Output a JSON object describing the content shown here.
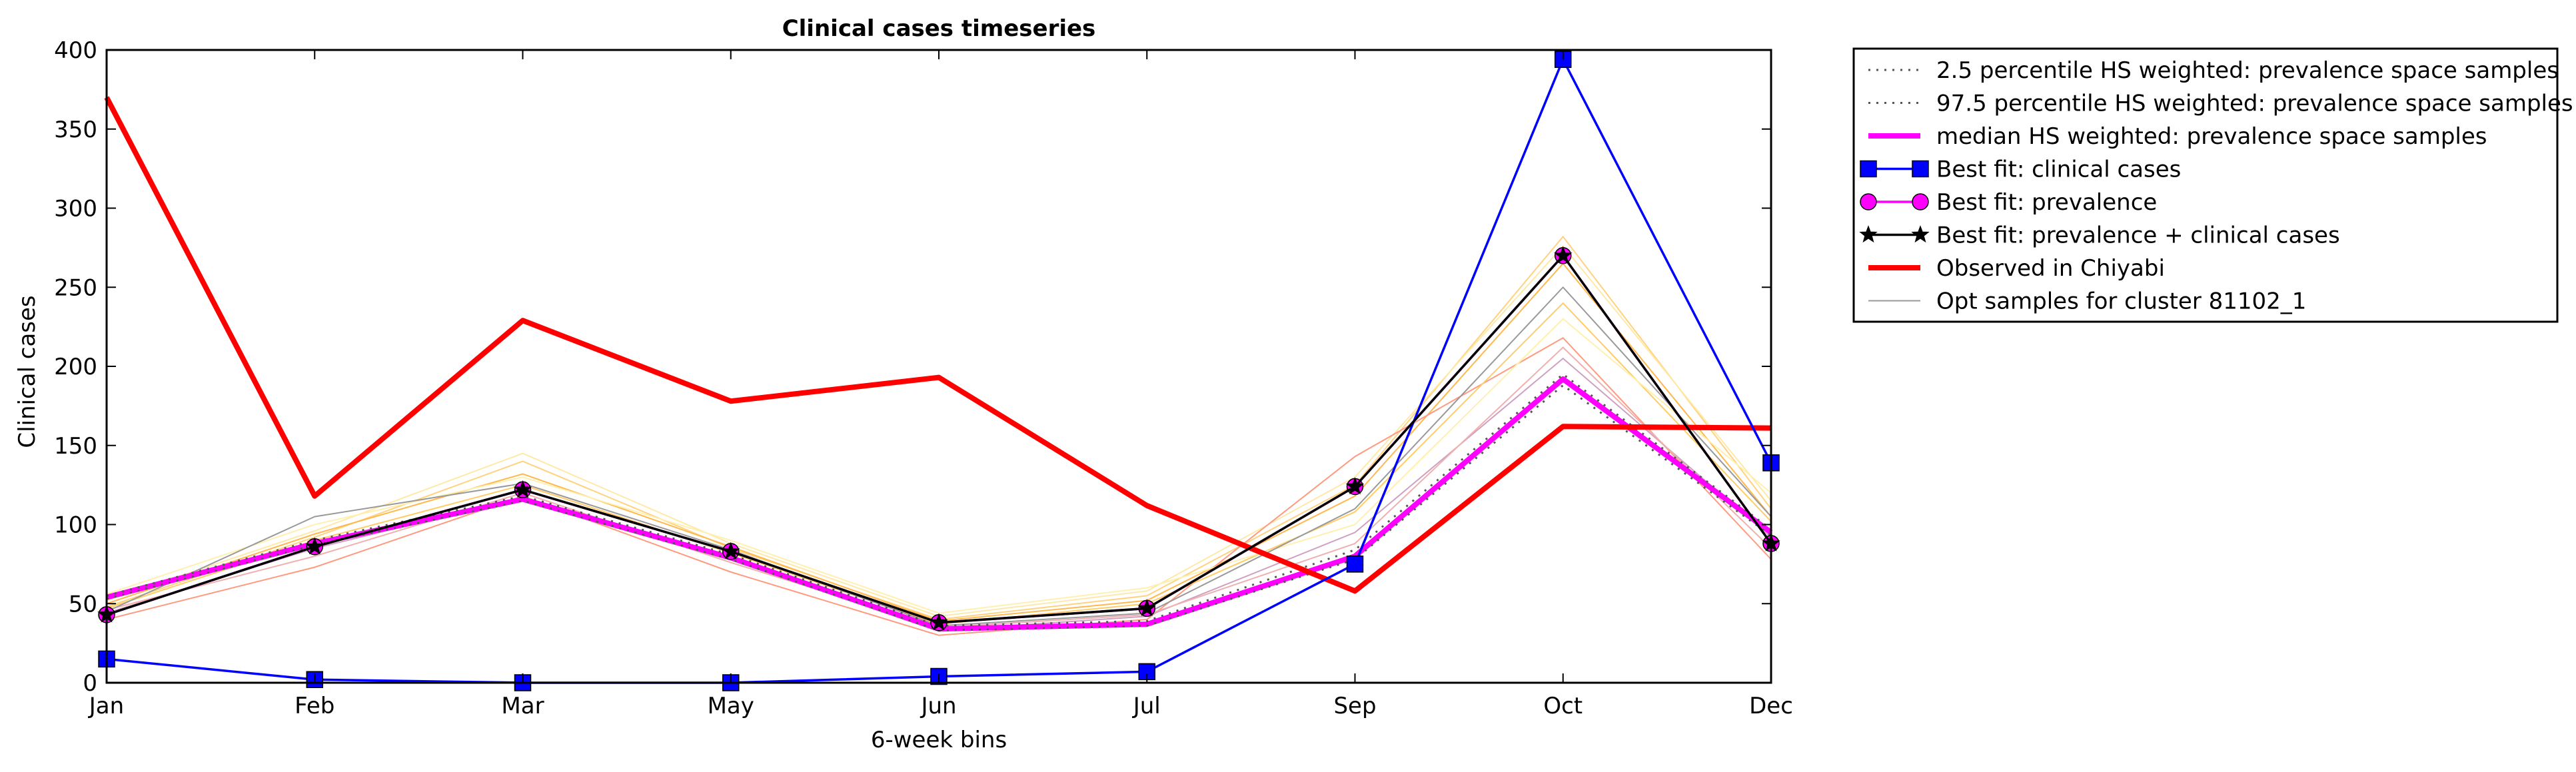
{
  "chart_data": {
    "type": "line",
    "title": "Clinical cases timeseries",
    "xlabel": "6-week bins",
    "ylabel": "Clinical cases",
    "categories": [
      "Jan",
      "Feb",
      "Mar",
      "May",
      "Jun",
      "Jul",
      "Sep",
      "Oct",
      "Dec"
    ],
    "ylim": [
      0,
      400
    ],
    "yticks": [
      0,
      50,
      100,
      150,
      200,
      250,
      300,
      350,
      400
    ],
    "grid": false,
    "legend_position": "outside-top-right",
    "series": [
      {
        "name": "2.5 percentile HS weighted: prevalence space samples",
        "color": "#555555",
        "style": "dotted",
        "values": [
          53,
          87,
          115,
          78,
          33,
          36,
          78,
          188,
          93
        ]
      },
      {
        "name": "97.5 percentile HS weighted: prevalence space samples",
        "color": "#555555",
        "style": "dotted",
        "values": [
          55,
          90,
          118,
          81,
          36,
          39,
          84,
          195,
          97
        ]
      },
      {
        "name": "median HS weighted: prevalence space samples",
        "color": "#ff00ff",
        "style": "thick",
        "values": [
          54,
          88,
          116,
          79,
          34,
          37,
          80,
          192,
          95
        ]
      },
      {
        "name": "Best fit: clinical cases",
        "color": "#0000ff",
        "marker": "square",
        "values": [
          15,
          2,
          0,
          0,
          4,
          7,
          75,
          394,
          139
        ]
      },
      {
        "name": "Best fit: prevalence",
        "color": "#ff00ff",
        "marker": "circle",
        "values": [
          43,
          86,
          122,
          83,
          38,
          47,
          124,
          270,
          88
        ]
      },
      {
        "name": "Best fit: prevalence + clinical cases",
        "color": "#000000",
        "marker": "star",
        "values": [
          43,
          86,
          122,
          83,
          38,
          47,
          124,
          270,
          88
        ]
      },
      {
        "name": "Observed in Chiyabi",
        "color": "#ff0000",
        "style": "thick",
        "values": [
          370,
          118,
          229,
          178,
          193,
          112,
          58,
          162,
          161
        ]
      },
      {
        "name": "Opt samples for cluster 81102_1",
        "color": "#999999",
        "style": "thin",
        "values": [
          45,
          105,
          126,
          84,
          36,
          44,
          110,
          250,
          105
        ]
      }
    ],
    "sample_lines": [
      {
        "color": "#ffd27f",
        "values": [
          48,
          92,
          140,
          85,
          40,
          55,
          125,
          282,
          110
        ]
      },
      {
        "color": "#ffe9a8",
        "values": [
          52,
          96,
          145,
          88,
          42,
          58,
          130,
          276,
          115
        ]
      },
      {
        "color": "#ffb84d",
        "values": [
          50,
          94,
          132,
          86,
          39,
          52,
          118,
          265,
          105
        ]
      },
      {
        "color": "#ff9a80",
        "values": [
          40,
          73,
          118,
          70,
          30,
          40,
          143,
          218,
          78
        ]
      },
      {
        "color": "#ffcc66",
        "values": [
          47,
          90,
          125,
          82,
          37,
          50,
          108,
          240,
          102
        ]
      },
      {
        "color": "#fff0b0",
        "values": [
          56,
          100,
          130,
          90,
          44,
          60,
          100,
          230,
          120
        ]
      },
      {
        "color": "#cfa0c0",
        "values": [
          44,
          85,
          117,
          78,
          33,
          42,
          95,
          205,
          92
        ]
      },
      {
        "color": "#f0b0b0",
        "values": [
          46,
          80,
          120,
          76,
          35,
          43,
          88,
          212,
          85
        ]
      }
    ]
  }
}
